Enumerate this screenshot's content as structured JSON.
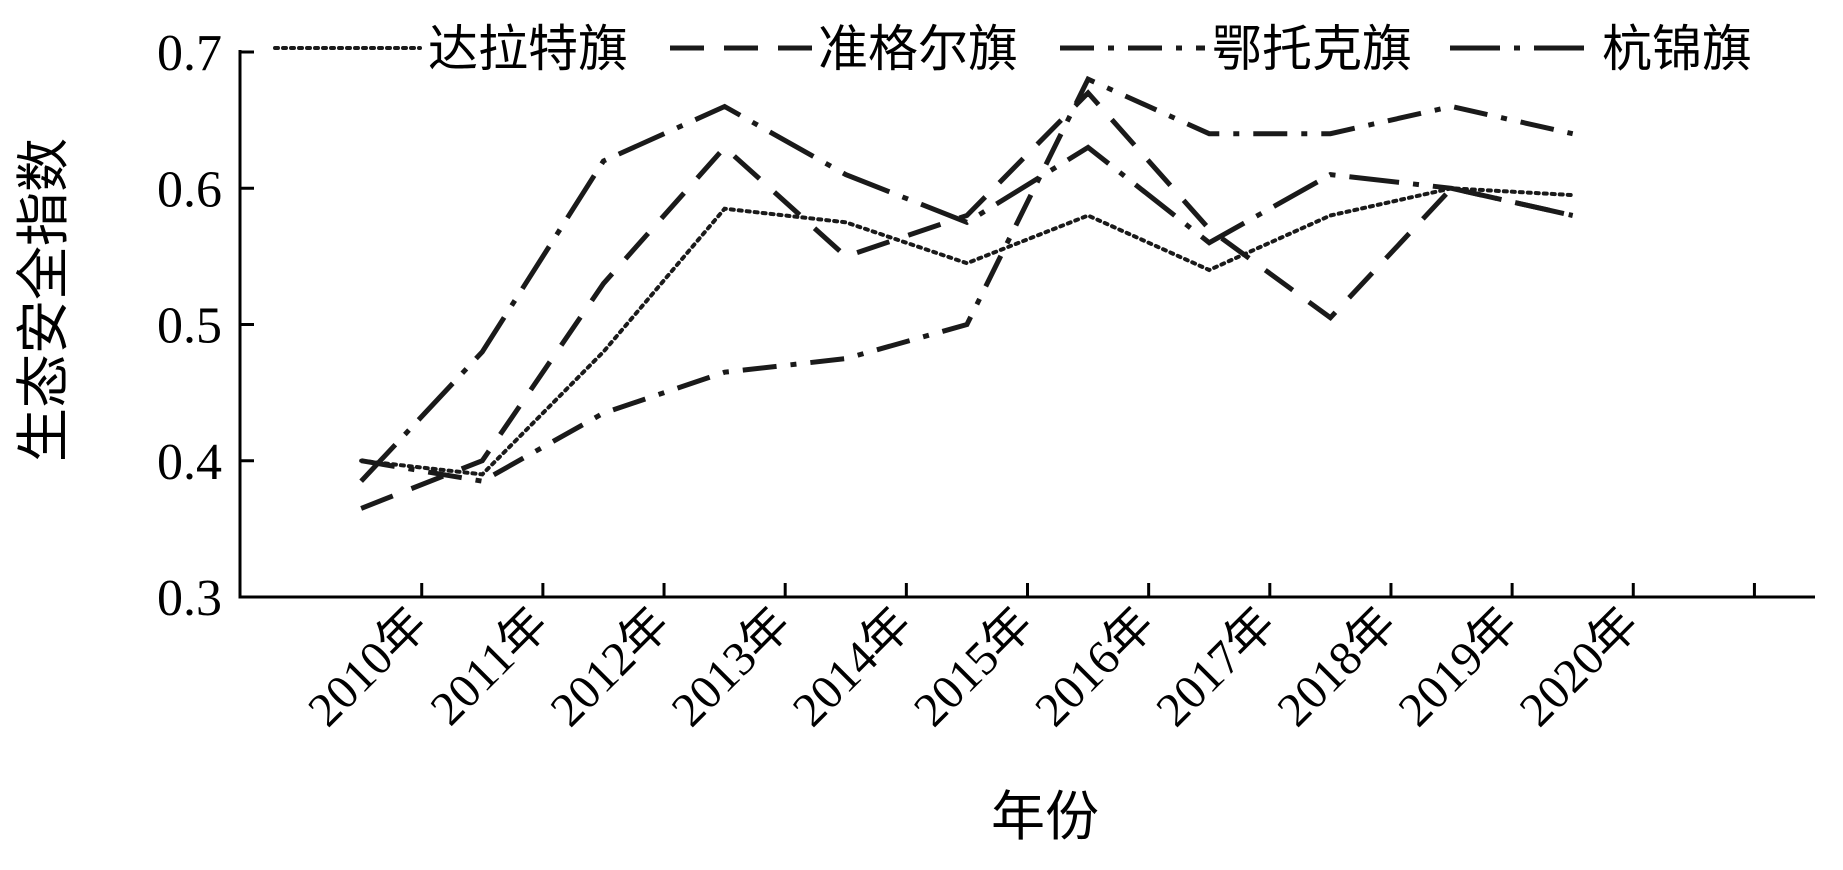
{
  "chart_data": {
    "type": "line",
    "xlabel": "年份",
    "ylabel": "生态安全指数",
    "categories": [
      "2010年",
      "2011年",
      "2012年",
      "2013年",
      "2014年",
      "2015年",
      "2016年",
      "2017年",
      "2018年",
      "2019年",
      "2020年"
    ],
    "ylim": [
      0.3,
      0.7
    ],
    "yticks": [
      "0.3",
      "0.4",
      "0.5",
      "0.6",
      "0.7"
    ],
    "legend_position": "top",
    "grid": false,
    "series": [
      {
        "name": "达拉特旗",
        "style": "dotted",
        "values": [
          0.4,
          0.39,
          0.48,
          0.585,
          0.575,
          0.545,
          0.58,
          0.54,
          0.58,
          0.6,
          0.595
        ]
      },
      {
        "name": "准格尔旗",
        "style": "dashed",
        "values": [
          0.365,
          0.4,
          0.53,
          0.63,
          0.55,
          0.58,
          0.67,
          0.57,
          0.505,
          0.6,
          0.58
        ]
      },
      {
        "name": "鄂托克旗",
        "style": "dash-dot",
        "values": [
          0.4,
          0.385,
          0.435,
          0.465,
          0.475,
          0.5,
          0.68,
          0.64,
          0.64,
          0.66,
          0.64
        ]
      },
      {
        "name": "杭锦旗",
        "style": "long-dash-dot",
        "values": [
          0.385,
          0.48,
          0.62,
          0.66,
          0.61,
          0.575,
          0.63,
          0.56,
          0.61,
          0.6,
          0.58
        ]
      }
    ]
  }
}
